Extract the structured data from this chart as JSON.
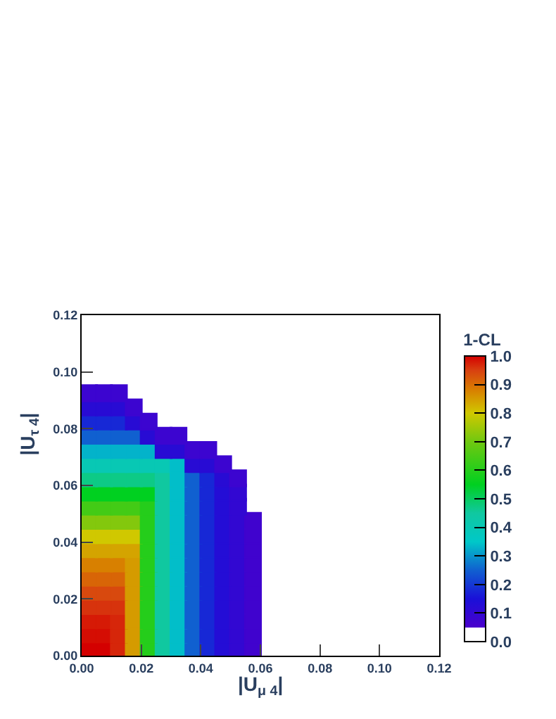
{
  "chart_data": {
    "type": "scatter",
    "marker": "square",
    "xlabel": "|U$_{μ 4}$|",
    "ylabel": "|U$_{τ 4}$|",
    "clabel": "1-CL",
    "series": [
      {
        "x": [
          0.0025,
          0.0075,
          0.0125,
          0.0175,
          0.0225,
          0.0275,
          0.0325,
          0.0375,
          0.0425,
          0.0475,
          0.0525,
          0.0575
        ],
        "values": [
          0.0025,
          0.0025,
          0.0025,
          0.0025,
          0.0025,
          0.0025,
          0.0025,
          0.0025,
          0.0025,
          0.0025,
          0.0025,
          0.0025
        ],
        "cvalues": [
          1.0,
          1.0,
          0.97,
          0.85,
          0.6,
          0.45,
          0.34,
          0.25,
          0.18,
          0.13,
          0.1,
          0.07
        ],
        "colors": [
          "#d40000",
          "#d40000",
          "#d6260a",
          "#d59b00",
          "#25cd1b",
          "#10c8a0",
          "#02bec9",
          "#1060d0",
          "#1728d6",
          "#240dd6",
          "#3208d2",
          "#4003ce"
        ]
      },
      {
        "x": [
          0.0025,
          0.0075,
          0.0125,
          0.0175,
          0.0225,
          0.0275,
          0.0325,
          0.0375,
          0.0425,
          0.0475,
          0.0525,
          0.0575
        ],
        "values": [
          0.0075,
          0.0075,
          0.0075,
          0.0075,
          0.0075,
          0.0075,
          0.0075,
          0.0075,
          0.0075,
          0.0075,
          0.0075,
          0.0075
        ],
        "cvalues": [
          0.99,
          0.99,
          0.97,
          0.85,
          0.6,
          0.45,
          0.34,
          0.25,
          0.18,
          0.13,
          0.1,
          0.07
        ],
        "colors": [
          "#d50d03",
          "#d50d03",
          "#d6260a",
          "#d59b00",
          "#25cd1b",
          "#10c8a0",
          "#02bec9",
          "#1060d0",
          "#1728d6",
          "#240dd6",
          "#3208d2",
          "#4003ce"
        ]
      },
      {
        "x": [
          0.0025,
          0.0075,
          0.0125,
          0.0175,
          0.0225,
          0.0275,
          0.0325,
          0.0375,
          0.0425,
          0.0475,
          0.0525,
          0.0575
        ],
        "values": [
          0.0125,
          0.0125,
          0.0125,
          0.0125,
          0.0125,
          0.0125,
          0.0125,
          0.0125,
          0.0125,
          0.0125,
          0.0125,
          0.0125
        ],
        "cvalues": [
          0.98,
          0.98,
          0.97,
          0.85,
          0.6,
          0.45,
          0.34,
          0.25,
          0.18,
          0.13,
          0.1,
          0.07
        ],
        "colors": [
          "#d61a06",
          "#d61a06",
          "#d6260a",
          "#d59b00",
          "#25cd1b",
          "#10c8a0",
          "#02bec9",
          "#1060d0",
          "#1728d6",
          "#240dd6",
          "#3208d2",
          "#4003ce"
        ]
      },
      {
        "x": [
          0.0025,
          0.0075,
          0.0125,
          0.0175,
          0.0225,
          0.0275,
          0.0325,
          0.0375,
          0.0425,
          0.0475,
          0.0525,
          0.0575
        ],
        "values": [
          0.0175,
          0.0175,
          0.0175,
          0.0175,
          0.0175,
          0.0175,
          0.0175,
          0.0175,
          0.0175,
          0.0175,
          0.0175,
          0.0175
        ],
        "cvalues": [
          0.96,
          0.96,
          0.96,
          0.85,
          0.6,
          0.45,
          0.34,
          0.25,
          0.18,
          0.13,
          0.1,
          0.07
        ],
        "colors": [
          "#d7330d",
          "#d7330d",
          "#d7330d",
          "#d59b00",
          "#25cd1b",
          "#10c8a0",
          "#02bec9",
          "#1060d0",
          "#1728d6",
          "#240dd6",
          "#3208d2",
          "#4003ce"
        ]
      },
      {
        "x": [
          0.0025,
          0.0075,
          0.0125,
          0.0175,
          0.0225,
          0.0275,
          0.0325,
          0.0375,
          0.0425,
          0.0475,
          0.0525,
          0.0575
        ],
        "values": [
          0.0225,
          0.0225,
          0.0225,
          0.0225,
          0.0225,
          0.0225,
          0.0225,
          0.0225,
          0.0225,
          0.0225,
          0.0225,
          0.0225
        ],
        "cvalues": [
          0.94,
          0.94,
          0.94,
          0.85,
          0.6,
          0.45,
          0.34,
          0.25,
          0.18,
          0.13,
          0.1,
          0.07
        ],
        "colors": [
          "#d8490e",
          "#d8490e",
          "#d8490e",
          "#d59b00",
          "#25cd1b",
          "#10c8a0",
          "#02bec9",
          "#1060d0",
          "#1728d6",
          "#240dd6",
          "#3208d2",
          "#4003ce"
        ]
      },
      {
        "x": [
          0.0025,
          0.0075,
          0.0125,
          0.0175,
          0.0225,
          0.0275,
          0.0325,
          0.0375,
          0.0425,
          0.0475,
          0.0525,
          0.0575
        ],
        "values": [
          0.0275,
          0.0275,
          0.0275,
          0.0275,
          0.0275,
          0.0275,
          0.0275,
          0.0275,
          0.0275,
          0.0275,
          0.0275,
          0.0275
        ],
        "cvalues": [
          0.91,
          0.91,
          0.91,
          0.85,
          0.6,
          0.45,
          0.34,
          0.25,
          0.18,
          0.13,
          0.1,
          0.07
        ],
        "colors": [
          "#d86507",
          "#d86507",
          "#d86507",
          "#d59b00",
          "#25cd1b",
          "#10c8a0",
          "#02bec9",
          "#1060d0",
          "#1728d6",
          "#240dd6",
          "#3208d2",
          "#4003ce"
        ]
      },
      {
        "x": [
          0.0025,
          0.0075,
          0.0125,
          0.0175,
          0.0225,
          0.0275,
          0.0325,
          0.0375,
          0.0425,
          0.0475,
          0.0525,
          0.0575
        ],
        "values": [
          0.0325,
          0.0325,
          0.0325,
          0.0325,
          0.0325,
          0.0325,
          0.0325,
          0.0325,
          0.0325,
          0.0325,
          0.0325,
          0.0325
        ],
        "cvalues": [
          0.88,
          0.88,
          0.88,
          0.85,
          0.6,
          0.45,
          0.34,
          0.25,
          0.18,
          0.13,
          0.1,
          0.07
        ],
        "colors": [
          "#d88000",
          "#d88000",
          "#d88000",
          "#d59b00",
          "#25cd1b",
          "#10c8a0",
          "#02bec9",
          "#1060d0",
          "#1728d6",
          "#240dd6",
          "#3208d2",
          "#4003ce"
        ]
      },
      {
        "x": [
          0.0025,
          0.0075,
          0.0125,
          0.0175,
          0.0225,
          0.0275,
          0.0325,
          0.0375,
          0.0425,
          0.0475,
          0.0525,
          0.0575
        ],
        "values": [
          0.0375,
          0.0375,
          0.0375,
          0.0375,
          0.0375,
          0.0375,
          0.0375,
          0.0375,
          0.0375,
          0.0375,
          0.0375,
          0.0375
        ],
        "cvalues": [
          0.84,
          0.84,
          0.84,
          0.84,
          0.6,
          0.45,
          0.34,
          0.25,
          0.18,
          0.13,
          0.1,
          0.07
        ],
        "colors": [
          "#d4a400",
          "#d4a400",
          "#d4a400",
          "#d4a400",
          "#25cd1b",
          "#10c8a0",
          "#02bec9",
          "#1060d0",
          "#1728d6",
          "#240dd6",
          "#3208d2",
          "#4003ce"
        ]
      },
      {
        "x": [
          0.0025,
          0.0075,
          0.0125,
          0.0175,
          0.0225,
          0.0275,
          0.0325,
          0.0375,
          0.0425,
          0.0475,
          0.0525,
          0.0575
        ],
        "values": [
          0.0425,
          0.0425,
          0.0425,
          0.0425,
          0.0425,
          0.0425,
          0.0425,
          0.0425,
          0.0425,
          0.0425,
          0.0425,
          0.0425
        ],
        "cvalues": [
          0.8,
          0.8,
          0.8,
          0.8,
          0.6,
          0.45,
          0.34,
          0.25,
          0.18,
          0.13,
          0.1,
          0.07
        ],
        "colors": [
          "#d0c800",
          "#d0c800",
          "#d0c800",
          "#d0c800",
          "#25cd1b",
          "#10c8a0",
          "#02bec9",
          "#1060d0",
          "#1728d6",
          "#240dd6",
          "#3208d2",
          "#4003ce"
        ]
      },
      {
        "x": [
          0.0025,
          0.0075,
          0.0125,
          0.0175,
          0.0225,
          0.0275,
          0.0325,
          0.0375,
          0.0425,
          0.0475,
          0.0525,
          0.0575
        ],
        "values": [
          0.0475,
          0.0475,
          0.0475,
          0.0475,
          0.0475,
          0.0475,
          0.0475,
          0.0475,
          0.0475,
          0.0475,
          0.0475,
          0.0475
        ],
        "cvalues": [
          0.72,
          0.72,
          0.72,
          0.72,
          0.6,
          0.45,
          0.34,
          0.25,
          0.18,
          0.13,
          0.1,
          0.07
        ],
        "colors": [
          "#83c80d",
          "#83c80d",
          "#83c80d",
          "#83c80d",
          "#25cd1b",
          "#10c8a0",
          "#02bec9",
          "#1060d0",
          "#1728d6",
          "#240dd6",
          "#3208d2",
          "#4003ce"
        ]
      },
      {
        "x": [
          0.0025,
          0.0075,
          0.0125,
          0.0175,
          0.0225,
          0.0275,
          0.0325,
          0.0375,
          0.0425,
          0.0475,
          0.0525
        ],
        "values": [
          0.0525,
          0.0525,
          0.0525,
          0.0525,
          0.0525,
          0.0525,
          0.0525,
          0.0525,
          0.0525,
          0.0525,
          0.0525
        ],
        "cvalues": [
          0.64,
          0.64,
          0.64,
          0.64,
          0.6,
          0.45,
          0.34,
          0.25,
          0.18,
          0.13,
          0.1
        ],
        "colors": [
          "#43cb16",
          "#43cb16",
          "#43cb16",
          "#43cb16",
          "#25cd1b",
          "#10c8a0",
          "#02bec9",
          "#1060d0",
          "#1728d6",
          "#240dd6",
          "#3208d2"
        ]
      },
      {
        "x": [
          0.0025,
          0.0075,
          0.0125,
          0.0175,
          0.0225,
          0.0275,
          0.0325,
          0.0375,
          0.0425,
          0.0475,
          0.0525
        ],
        "values": [
          0.0575,
          0.0575,
          0.0575,
          0.0575,
          0.0575,
          0.0575,
          0.0575,
          0.0575,
          0.0575,
          0.0575,
          0.0575
        ],
        "cvalues": [
          0.55,
          0.55,
          0.55,
          0.55,
          0.55,
          0.45,
          0.34,
          0.25,
          0.18,
          0.13,
          0.1
        ],
        "colors": [
          "#00d020",
          "#00d020",
          "#00d020",
          "#00d020",
          "#00d020",
          "#10c8a0",
          "#02bec9",
          "#1060d0",
          "#1728d6",
          "#240dd6",
          "#3208d2"
        ]
      },
      {
        "x": [
          0.0025,
          0.0075,
          0.0125,
          0.0175,
          0.0225,
          0.0275,
          0.0325,
          0.0375,
          0.0425,
          0.0475,
          0.0525
        ],
        "values": [
          0.0625,
          0.0625,
          0.0625,
          0.0625,
          0.0625,
          0.0625,
          0.0625,
          0.0625,
          0.0625,
          0.0625,
          0.0625
        ],
        "cvalues": [
          0.47,
          0.47,
          0.47,
          0.47,
          0.47,
          0.45,
          0.34,
          0.25,
          0.18,
          0.12,
          0.08
        ],
        "colors": [
          "#0dca86",
          "#0dca86",
          "#0dca86",
          "#0dca86",
          "#0dca86",
          "#10c8a0",
          "#02bec9",
          "#1060d0",
          "#1728d6",
          "#280bd4",
          "#3c05d0"
        ]
      },
      {
        "x": [
          0.0025,
          0.0075,
          0.0125,
          0.0175,
          0.0225,
          0.0275,
          0.0325,
          0.0375,
          0.0425,
          0.0475
        ],
        "values": [
          0.0675,
          0.0675,
          0.0675,
          0.0675,
          0.0675,
          0.0675,
          0.0675,
          0.0675,
          0.0675,
          0.0675
        ],
        "cvalues": [
          0.4,
          0.4,
          0.4,
          0.4,
          0.4,
          0.4,
          0.34,
          0.12,
          0.12,
          0.08
        ],
        "colors": [
          "#08c8b4",
          "#08c8b4",
          "#08c8b4",
          "#08c8b4",
          "#08c8b4",
          "#08c8b4",
          "#02bec9",
          "#280bd4",
          "#280bd4",
          "#3c05d0"
        ]
      },
      {
        "x": [
          0.0025,
          0.0075,
          0.0125,
          0.0175,
          0.0225,
          0.0275,
          0.0325,
          0.0375,
          0.0425
        ],
        "values": [
          0.0725,
          0.0725,
          0.0725,
          0.0725,
          0.0725,
          0.0725,
          0.0725,
          0.0725,
          0.0725
        ],
        "cvalues": [
          0.33,
          0.33,
          0.33,
          0.33,
          0.33,
          0.12,
          0.12,
          0.08,
          0.08
        ],
        "colors": [
          "#03b3ca",
          "#03b3ca",
          "#03b3ca",
          "#03b3ca",
          "#03b3ca",
          "#280bd4",
          "#280bd4",
          "#3c05d0",
          "#3c05d0"
        ]
      },
      {
        "x": [
          0.0025,
          0.0075,
          0.0125,
          0.0175,
          0.0225,
          0.0275,
          0.0325
        ],
        "values": [
          0.0775,
          0.0775,
          0.0775,
          0.0775,
          0.0775,
          0.0775,
          0.0775
        ],
        "cvalues": [
          0.25,
          0.25,
          0.25,
          0.25,
          0.12,
          0.08,
          0.08
        ],
        "colors": [
          "#1060d0",
          "#1060d0",
          "#1060d0",
          "#1060d0",
          "#280bd4",
          "#3c05d0",
          "#3c05d0"
        ]
      },
      {
        "x": [
          0.0025,
          0.0075,
          0.0125,
          0.0175,
          0.0225
        ],
        "values": [
          0.0825,
          0.0825,
          0.0825,
          0.0825,
          0.0825
        ],
        "cvalues": [
          0.18,
          0.18,
          0.18,
          0.12,
          0.08
        ],
        "colors": [
          "#1728d6",
          "#1728d6",
          "#1728d6",
          "#280bd4",
          "#3c05d0"
        ]
      },
      {
        "x": [
          0.0025,
          0.0075,
          0.0125,
          0.0175
        ],
        "values": [
          0.0875,
          0.0875,
          0.0875,
          0.0875
        ],
        "cvalues": [
          0.12,
          0.12,
          0.12,
          0.08
        ],
        "colors": [
          "#280bd4",
          "#280bd4",
          "#280bd4",
          "#3c05d0"
        ]
      },
      {
        "x": [
          0.0025,
          0.0075,
          0.0125
        ],
        "values": [
          0.0925,
          0.0925,
          0.0925
        ],
        "cvalues": [
          0.08,
          0.08,
          0.08
        ],
        "colors": [
          "#3c05d0",
          "#3c05d0",
          "#3c05d0"
        ]
      }
    ],
    "xlim": [
      0,
      0.12
    ],
    "xticks": [
      {
        "value": 0,
        "label": "0.00"
      },
      {
        "value": 0.02,
        "label": "0.02"
      },
      {
        "value": 0.04,
        "label": "0.04"
      },
      {
        "value": 0.06,
        "label": "0.06"
      },
      {
        "value": 0.08,
        "label": "0.08"
      },
      {
        "value": 0.1,
        "label": "0.10"
      },
      {
        "value": 0.12,
        "label": "0.12"
      }
    ],
    "ylim": [
      0,
      0.12
    ],
    "yticks": [
      {
        "value": 0,
        "label": "0.00"
      },
      {
        "value": 0.02,
        "label": "0.02"
      },
      {
        "value": 0.04,
        "label": "0.04"
      },
      {
        "value": 0.06,
        "label": "0.06"
      },
      {
        "value": 0.08,
        "label": "0.08"
      },
      {
        "value": 0.1,
        "label": "0.10"
      },
      {
        "value": 0.12,
        "label": "0.12"
      }
    ],
    "clim": [
      0,
      1
    ],
    "cticks": [
      {
        "value": 0,
        "label": "0.0"
      },
      0.1,
      0.2,
      0.3,
      0.4,
      0.5,
      0.6,
      0.7,
      0.8,
      0.9,
      {
        "value": 1,
        "label": "1.0"
      }
    ]
  }
}
